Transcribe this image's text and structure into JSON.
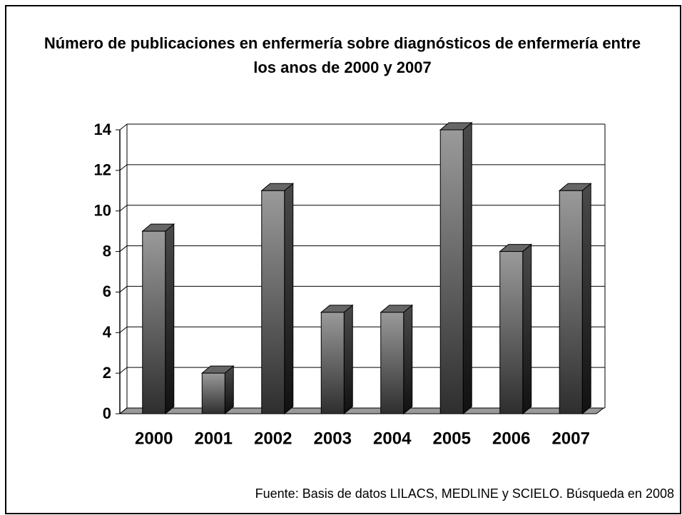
{
  "chart_data": {
    "type": "bar",
    "title": "Número de publicaciones en enfermería sobre diagnósticos de enfermería entre los anos de 2000 y 2007",
    "categories": [
      "2000",
      "2001",
      "2002",
      "2003",
      "2004",
      "2005",
      "2006",
      "2007"
    ],
    "values": [
      9,
      2,
      11,
      5,
      5,
      14,
      8,
      11
    ],
    "color": "#808080",
    "ylim": [
      0,
      14
    ],
    "yticks": [
      0,
      2,
      4,
      6,
      8,
      10,
      12,
      14
    ],
    "grid": true,
    "note": "Fuente: Basis de datos LILACS, MEDLINE y SCIELO. Búsqueda en 2008"
  }
}
